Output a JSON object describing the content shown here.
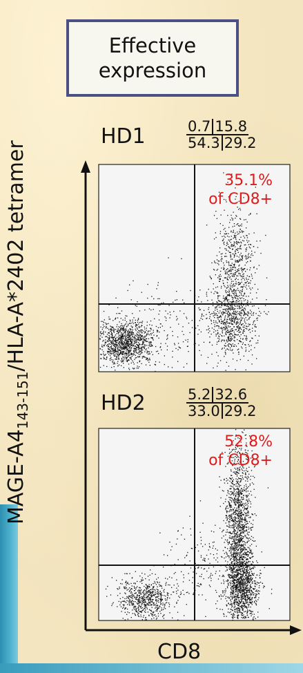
{
  "title": {
    "line1": "Effective",
    "line2": "expression"
  },
  "colors": {
    "background": "#f3e5bf",
    "title_border": "#4b4f83",
    "highlight": "#e01b1b",
    "accent": "#2e8fb0"
  },
  "chart_data": {
    "type": "scatter",
    "xlabel": "CD8",
    "ylabel": {
      "prefix": "MAGE-A4",
      "subscript": "143-151",
      "suffix": "/HLA-A*2402 tetramer"
    },
    "panels": [
      {
        "name": "HD1",
        "quadrants": {
          "upper_left": "0.7",
          "upper_right": "15.8",
          "lower_left": "54.3",
          "lower_right": "29.2"
        },
        "annotation": {
          "value": "35.1%",
          "text": "of CD8+"
        }
      },
      {
        "name": "HD2",
        "quadrants": {
          "upper_left": "5.2",
          "upper_right": "32.6",
          "lower_left": "33.0",
          "lower_right": "29.2"
        },
        "annotation": {
          "value": "52.8%",
          "text": "of CD8+"
        }
      }
    ]
  }
}
